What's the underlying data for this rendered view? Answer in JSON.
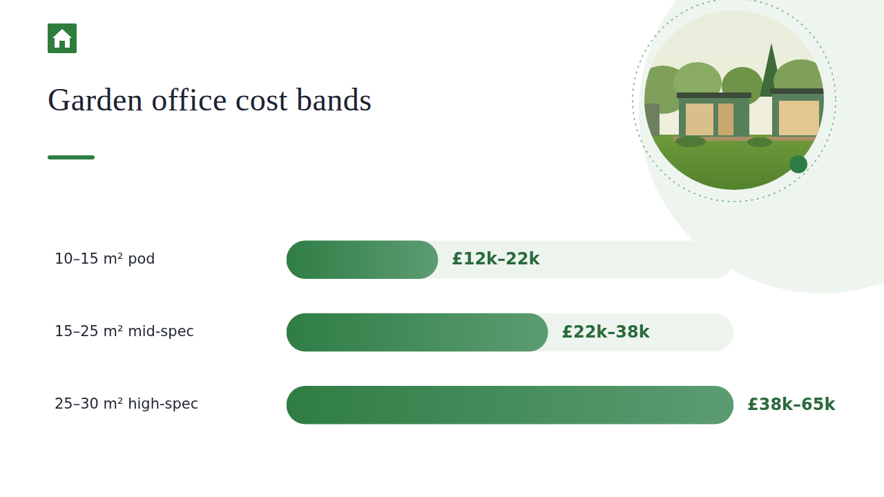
{
  "chart_data": {
    "type": "bar",
    "orientation": "horizontal",
    "title": "Garden office cost bands",
    "categories": [
      "10–15 m² pod",
      "15–25 m² mid-spec",
      "25–30 m² high-spec"
    ],
    "values": [
      [
        12,
        22
      ],
      [
        22,
        38
      ],
      [
        38,
        65
      ]
    ],
    "value_labels": [
      "£12k–22k",
      "£22k–38k",
      "£38k–65k"
    ],
    "xlim": [
      0,
      65
    ],
    "data_labels": true,
    "tick_labels": "y",
    "grid": false,
    "color": "#2f7d45"
  }
}
